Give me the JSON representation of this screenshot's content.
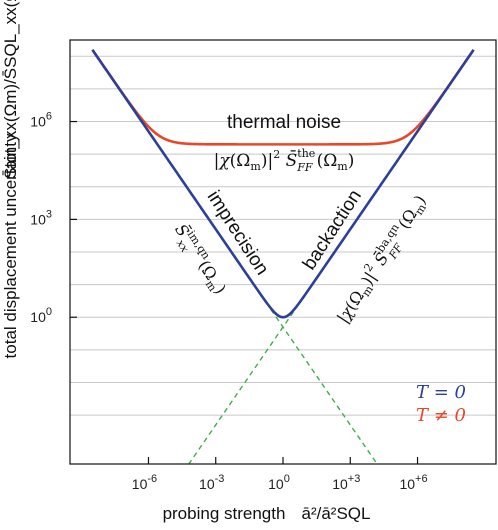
{
  "chart_data": {
    "type": "line",
    "xlabel": "probing strength",
    "xlabel_math": "ā²/ā²SQL",
    "ylabel": "total displacement uncertainty",
    "ylabel_math": "S̄tot_xx(Ωm)/S̄SQL_xx(Ωm)",
    "x_scale": "log",
    "y_scale": "log",
    "xlim_log10": [
      -9.5,
      9.5
    ],
    "ylim_log10": [
      -4.5,
      8.5
    ],
    "x_ticks": [
      {
        "log10": -6,
        "label": "10-6"
      },
      {
        "log10": -3,
        "label": "10-3"
      },
      {
        "log10": 0,
        "label": "100"
      },
      {
        "log10": 3,
        "label": "10+3"
      },
      {
        "log10": 6,
        "label": "10+6"
      }
    ],
    "y_ticks": [
      {
        "log10": 0,
        "label": "100"
      },
      {
        "log10": 3,
        "label": "103"
      },
      {
        "log10": 6,
        "label": "106"
      }
    ],
    "grid_y_log10": [
      -3,
      -2,
      -1,
      0,
      1,
      2,
      3,
      4,
      5,
      6,
      7,
      8
    ],
    "grid": true,
    "thermal_level_log10": 5.3,
    "curve_x_log10_range": [
      -8.5,
      8.5
    ],
    "series": [
      {
        "name": "T = 0",
        "color": "#2c3f99",
        "model": "imprecision + backaction"
      },
      {
        "name": "T ≠ 0",
        "color": "#e8472a",
        "model": "imprecision + backaction + thermal noise"
      },
      {
        "color": "#3fae4a",
        "dash": true,
        "model": "imprecision only"
      },
      {
        "color": "#3fae4a",
        "dash": true,
        "model": "backaction only"
      }
    ],
    "annotations": {
      "thermal": "thermal noise",
      "thermal_formula": "|χ(Ωm)|²S̄theFF(Ωm)",
      "imprecision": "imprecision",
      "imprecision_formula": "S̄im,qnxx(Ωm)",
      "backaction": "backaction",
      "backaction_formula": "|χ(Ωm)|²S̄ba,qnFF(Ωm)"
    },
    "legend": {
      "position": "bottom-right",
      "entries": [
        {
          "text": "T = 0",
          "color": "#2c3f99"
        },
        {
          "text": "T ≠ 0",
          "color": "#e8472a"
        }
      ]
    }
  }
}
